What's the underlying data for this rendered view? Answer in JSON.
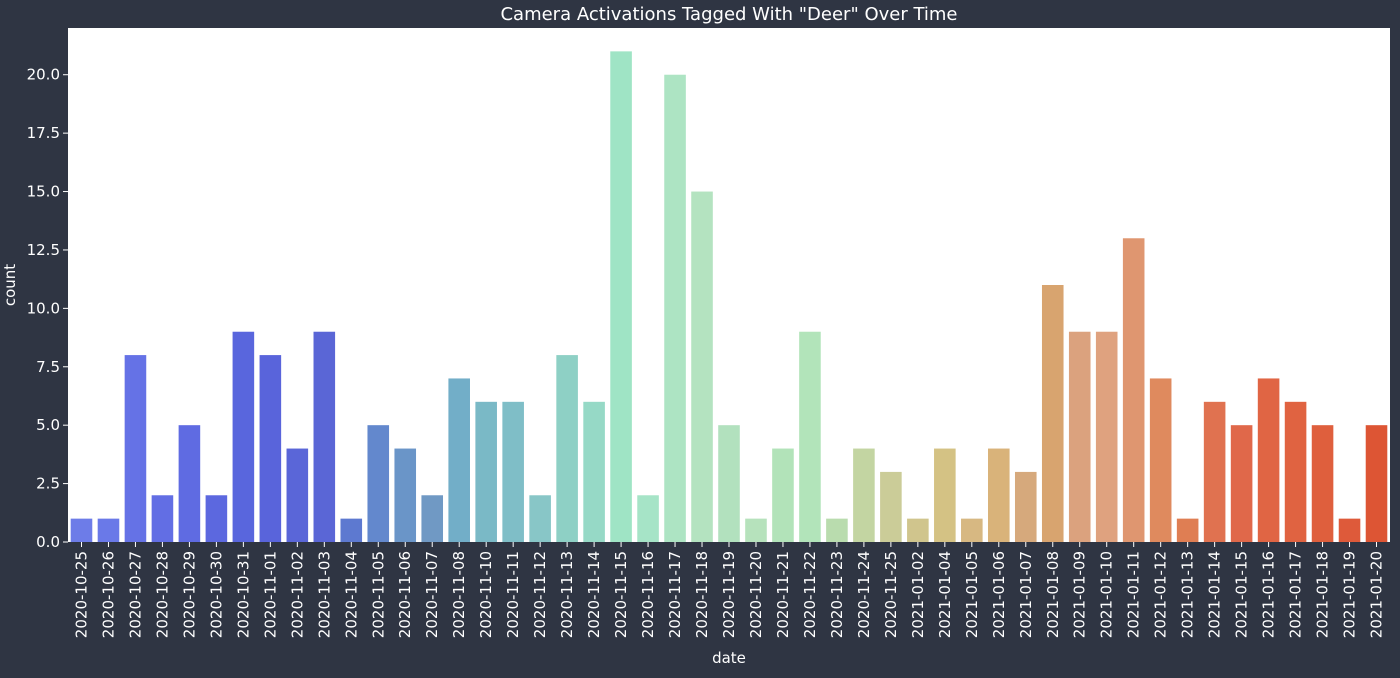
{
  "chart_data": {
    "type": "bar",
    "title": "Camera Activations Tagged With \"Deer\" Over Time",
    "xlabel": "date",
    "ylabel": "count",
    "ylim": [
      0,
      22
    ],
    "yticks": [
      "0.0",
      "2.5",
      "5.0",
      "7.5",
      "10.0",
      "12.5",
      "15.0",
      "17.5",
      "20.0"
    ],
    "grid": false,
    "palette": "rainbow (blue → green → orange → red)",
    "background": "#2f3543",
    "plot_background": "#ffffff",
    "categories": [
      "2020-10-25",
      "2020-10-26",
      "2020-10-27",
      "2020-10-28",
      "2020-10-29",
      "2020-10-30",
      "2020-10-31",
      "2020-11-01",
      "2020-11-02",
      "2020-11-03",
      "2020-11-04",
      "2020-11-05",
      "2020-11-06",
      "2020-11-07",
      "2020-11-08",
      "2020-11-10",
      "2020-11-11",
      "2020-11-12",
      "2020-11-13",
      "2020-11-14",
      "2020-11-15",
      "2020-11-16",
      "2020-11-17",
      "2020-11-18",
      "2020-11-19",
      "2020-11-20",
      "2020-11-21",
      "2020-11-22",
      "2020-11-23",
      "2020-11-24",
      "2020-11-25",
      "2021-01-02",
      "2021-01-04",
      "2021-01-05",
      "2021-01-06",
      "2021-01-07",
      "2021-01-08",
      "2021-01-09",
      "2021-01-10",
      "2021-01-11",
      "2021-01-12",
      "2021-01-13",
      "2021-01-14",
      "2021-01-15",
      "2021-01-16",
      "2021-01-17",
      "2021-01-18",
      "2021-01-19",
      "2021-01-20"
    ],
    "values": [
      1,
      1,
      8,
      2,
      5,
      2,
      9,
      8,
      4,
      9,
      1,
      5,
      4,
      2,
      7,
      6,
      6,
      2,
      8,
      6,
      21,
      2,
      20,
      15,
      5,
      1,
      4,
      9,
      1,
      4,
      3,
      1,
      4,
      1,
      4,
      3,
      11,
      9,
      9,
      13,
      7,
      1,
      6,
      5,
      7,
      6,
      5,
      1,
      5
    ],
    "colors": [
      "#6d7ce8",
      "#6a79e8",
      "#6572e6",
      "#626ee4",
      "#5f6be2",
      "#5c68df",
      "#5966dd",
      "#5964db",
      "#5a66d8",
      "#5a66d6",
      "#5d79d0",
      "#6388cd",
      "#6a95c8",
      "#7099c4",
      "#72aec8",
      "#7ab9c6",
      "#7fbec7",
      "#88c6c7",
      "#8ed0c5",
      "#96d9c6",
      "#9fe4c5",
      "#a6e4c7",
      "#ade4c3",
      "#b4e3c0",
      "#b2e1be",
      "#b6e2bc",
      "#b2e3b9",
      "#b2e4ba",
      "#b9dcae",
      "#c3d5a2",
      "#cbcc98",
      "#d0c58d",
      "#d4c284",
      "#d7b882",
      "#d9b37a",
      "#d6a97c",
      "#d8a46f",
      "#dba27e",
      "#dfa27f",
      "#df9670",
      "#df8a5e",
      "#df7e53",
      "#e07250",
      "#e0684a",
      "#e06544",
      "#e06341",
      "#df5f3d",
      "#de5a3a",
      "#dd5534"
    ]
  }
}
